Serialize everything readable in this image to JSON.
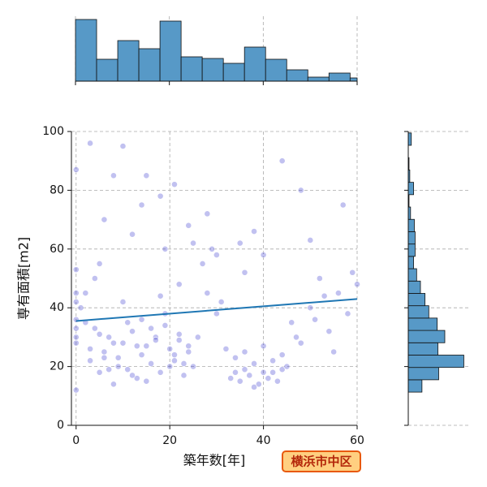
{
  "chart_data": [
    {
      "type": "scatter",
      "xlabel": "築年数[年]",
      "ylabel": "専有面積[m2]",
      "annotation": "横浜市中区",
      "color": "#3333cc",
      "grid": true,
      "xlim": [
        -1,
        60
      ],
      "ylim": [
        0,
        100
      ],
      "xticks": [
        0,
        20,
        40,
        60
      ],
      "yticks": [
        0,
        20,
        40,
        60,
        80,
        100
      ],
      "x": [
        0,
        0,
        0,
        0,
        0,
        0,
        0,
        0,
        0,
        2,
        3,
        4,
        5,
        6,
        7,
        8,
        9,
        10,
        11,
        12,
        13,
        14,
        15,
        16,
        17,
        18,
        19,
        20,
        21,
        22,
        23,
        24,
        25,
        1,
        3,
        5,
        7,
        9,
        11,
        13,
        15,
        17,
        19,
        21,
        23,
        2,
        4,
        6,
        8,
        10,
        12,
        14,
        16,
        18,
        20,
        22,
        24,
        33,
        34,
        35,
        36,
        37,
        38,
        39,
        40,
        41,
        42,
        43,
        44,
        45,
        34,
        36,
        38,
        40,
        42,
        44,
        26,
        28,
        30,
        32,
        46,
        48,
        50,
        52,
        54,
        56,
        58,
        60,
        27,
        29,
        31,
        47,
        51,
        55,
        59,
        3,
        6,
        10,
        15,
        19,
        21,
        24,
        28,
        35,
        40,
        44,
        50,
        57,
        5,
        12,
        18,
        22,
        30,
        38,
        48,
        8,
        14,
        25,
        36,
        53
      ],
      "y": [
        12,
        28,
        30,
        33,
        36,
        42,
        45,
        53,
        87,
        35,
        22,
        33,
        18,
        25,
        30,
        14,
        20,
        28,
        19,
        32,
        16,
        24,
        27,
        21,
        30,
        18,
        34,
        26,
        22,
        29,
        17,
        25,
        20,
        40,
        26,
        31,
        19,
        23,
        35,
        27,
        15,
        29,
        38,
        24,
        21,
        45,
        50,
        23,
        28,
        42,
        17,
        36,
        33,
        44,
        20,
        31,
        27,
        16,
        18,
        15,
        19,
        17,
        21,
        14,
        18,
        16,
        22,
        15,
        19,
        20,
        23,
        25,
        13,
        27,
        18,
        24,
        30,
        45,
        38,
        26,
        35,
        28,
        40,
        50,
        32,
        45,
        38,
        48,
        55,
        60,
        42,
        30,
        36,
        25,
        52,
        96,
        70,
        95,
        85,
        60,
        82,
        68,
        72,
        62,
        58,
        90,
        63,
        75,
        55,
        65,
        78,
        48,
        58,
        66,
        80,
        85,
        75,
        62,
        52,
        44
      ],
      "fit": {
        "color": "#1f77b4",
        "x": [
          0,
          60
        ],
        "y": [
          35.5,
          43
        ]
      }
    },
    {
      "type": "histogram",
      "color": "#5799c7",
      "grid": true,
      "xlim": [
        0,
        60
      ],
      "ylim": [
        0,
        80
      ],
      "xticks": [
        0,
        20,
        40,
        60
      ],
      "bins": [
        0,
        4.5,
        9,
        13.5,
        18,
        22.5,
        27,
        31.5,
        36,
        40.5,
        45,
        49.5,
        54,
        58.5,
        60
      ],
      "values": [
        76,
        27,
        50,
        40,
        74,
        30,
        28,
        22,
        42,
        27,
        14,
        5,
        10,
        4
      ]
    },
    {
      "type": "histogram-horizontal",
      "color": "#5799c7",
      "grid": true,
      "xlim": [
        0,
        80
      ],
      "ylim": [
        0,
        100
      ],
      "yticks": [
        0,
        20,
        40,
        60,
        80,
        100
      ],
      "bins": [
        11.3,
        15.5,
        19.7,
        23.9,
        28.1,
        32.3,
        36.5,
        40.7,
        44.9,
        49.1,
        53.3,
        57.5,
        61.7,
        65.9,
        70.1,
        74.3,
        78.5,
        82.7,
        86.9,
        91.1,
        95.3,
        99.5
      ],
      "values": [
        18,
        40,
        73,
        39,
        48,
        38,
        27,
        22,
        16,
        11,
        7,
        9,
        9,
        8,
        3,
        1,
        7,
        2,
        1,
        0,
        4
      ]
    }
  ]
}
